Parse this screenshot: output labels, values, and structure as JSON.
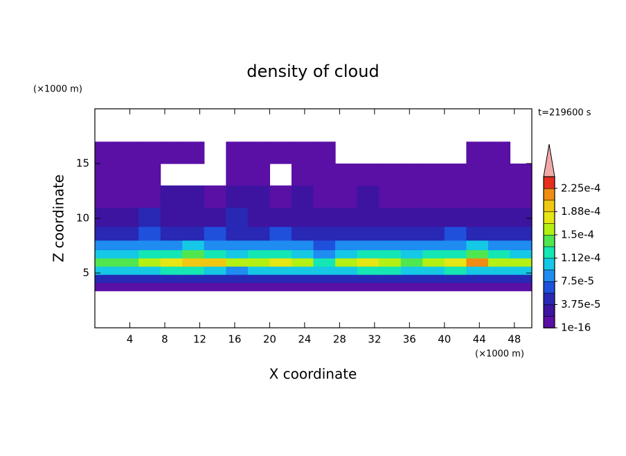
{
  "chart_data": {
    "type": "contour",
    "title": "density of cloud",
    "time_label": "t=219600 s",
    "x_label": "X coordinate",
    "y_label": "Z coordinate",
    "x_unit": "(×1000 m)",
    "y_unit": "(×1000 m)",
    "xlim": [
      0,
      50
    ],
    "ylim": [
      0,
      20
    ],
    "xticks": [
      4,
      8,
      12,
      16,
      20,
      24,
      28,
      32,
      36,
      40,
      44,
      48
    ],
    "yticks": [
      5,
      10,
      15
    ],
    "levels": [
      1e-16,
      1.875e-05,
      3.75e-05,
      5.625e-05,
      7.5e-05,
      9.375e-05,
      0.0001125,
      0.00013125,
      0.00015,
      0.00016875,
      0.0001875,
      0.00020625,
      0.000225,
      0.00024375
    ],
    "colors": [
      "#5a0fa5",
      "#3c14a0",
      "#2828b4",
      "#1e50dc",
      "#1e8cf0",
      "#14c8e6",
      "#14e6b4",
      "#50e650",
      "#b4f014",
      "#e6e614",
      "#f0c814",
      "#f08c14",
      "#e62d1e"
    ],
    "extend_color": "#f0a8a8",
    "colorbar_ticks": [
      1e-16,
      {
        "value": 3.75e-05,
        "label": "3.75e-5"
      },
      {
        "value": 7.5e-05,
        "label": "7.5e-5"
      },
      {
        "value": 0.0001125,
        "label": "1.12e-4"
      },
      {
        "value": 0.00015,
        "label": "1.5e-4"
      },
      {
        "value": 0.0001875,
        "label": "1.88e-4"
      },
      {
        "value": 0.000225,
        "label": "2.25e-4"
      }
    ],
    "x": [
      1.25,
      3.75,
      6.25,
      8.75,
      11.25,
      13.75,
      16.25,
      18.75,
      21.25,
      23.75,
      26.25,
      28.75,
      31.25,
      33.75,
      36.25,
      38.75,
      41.25,
      43.75,
      46.25,
      48.75
    ],
    "z": [
      3.75,
      4.5,
      5.25,
      6,
      6.75,
      7.5,
      8.5,
      10,
      12,
      14,
      16
    ],
    "values": [
      [
        1.5e-05,
        1.2e-05,
        1.5e-05,
        1.6e-05,
        1.4e-05,
        1.5e-05,
        1.3e-05,
        1.5e-05,
        1.6e-05,
        1.4e-05,
        1.5e-05,
        1.2e-05,
        1.5e-05,
        1.6e-05,
        1.4e-05,
        1.5e-05,
        1.3e-05,
        1.5e-05,
        1.6e-05,
        1.4e-05
      ],
      [
        4.5e-05,
        4e-05,
        5e-05,
        4.5e-05,
        3.8e-05,
        4.2e-05,
        5e-05,
        4.6e-05,
        4e-05,
        4.8e-05,
        5e-05,
        4.4e-05,
        4e-05,
        4.6e-05,
        5e-05,
        4.5e-05,
        4.2e-05,
        4.8e-05,
        4.4e-05,
        4.6e-05
      ],
      [
        0.0001,
        9.5e-05,
        0.00011,
        0.00012,
        0.000115,
        0.0001,
        9e-05,
        0.000105,
        0.00011,
        0.0001,
        9.5e-05,
        0.00011,
        0.00012,
        0.000115,
        0.0001,
        0.00011,
        0.00012,
        0.00011,
        0.0001,
        0.000105
      ],
      [
        0.00014,
        0.000135,
        0.00015,
        0.00017,
        0.00019,
        0.0002,
        0.00015,
        0.00016,
        0.00017,
        0.00015,
        0.00012,
        0.00015,
        0.00017,
        0.00016,
        0.00014,
        0.00016,
        0.00018,
        0.00021,
        0.00016,
        0.00015
      ],
      [
        0.00011,
        0.000105,
        0.00012,
        0.00013,
        0.00014,
        0.00012,
        0.00011,
        0.00012,
        0.00013,
        0.00011,
        9e-05,
        0.00011,
        0.00012,
        0.00012,
        0.0001,
        0.00012,
        0.00013,
        0.00014,
        0.00012,
        0.00011
      ],
      [
        8e-05,
        7.5e-05,
        8.5e-05,
        9e-05,
        9.5e-05,
        8.5e-05,
        8e-05,
        8.5e-05,
        9e-05,
        8e-05,
        7e-05,
        8e-05,
        9e-05,
        8.5e-05,
        8e-05,
        8.5e-05,
        9e-05,
        9.5e-05,
        8.5e-05,
        8e-05
      ],
      [
        5e-05,
        5.5e-05,
        6e-05,
        5e-05,
        5.5e-05,
        6e-05,
        5e-05,
        5e-05,
        6e-05,
        5.5e-05,
        5e-05,
        5e-05,
        5.5e-05,
        5e-05,
        5e-05,
        5.5e-05,
        6e-05,
        5e-05,
        5.5e-05,
        5e-05
      ],
      [
        3.5e-05,
        3e-05,
        3.8e-05,
        3.2e-05,
        3e-05,
        3.5e-05,
        3.8e-05,
        3e-05,
        3.2e-05,
        3.6e-05,
        3e-05,
        3.4e-05,
        3e-05,
        2.8e-05,
        3.2e-05,
        3e-05,
        3.5e-05,
        3.3e-05,
        3e-05,
        3.2e-05
      ],
      [
        1e-05,
        1.5e-05,
        1.2e-05,
        2e-05,
        2.2e-05,
        1.8e-05,
        2.5e-05,
        2e-05,
        1.5e-05,
        2e-05,
        1.8e-05,
        1.5e-05,
        2e-05,
        1.2e-05,
        1e-05,
        1.5e-05,
        1e-05,
        1e-05,
        1.2e-05,
        1.5e-05
      ],
      [
        8e-06,
        8e-06,
        8e-06,
        null,
        null,
        null,
        8e-06,
        8e-06,
        null,
        1e-05,
        8e-06,
        8e-06,
        1e-05,
        8e-06,
        8e-06,
        8e-06,
        8e-06,
        8e-06,
        8e-06,
        8e-06
      ],
      [
        8e-06,
        8e-06,
        8e-06,
        8e-06,
        8e-06,
        null,
        8e-06,
        8e-06,
        8e-06,
        8e-06,
        8e-06,
        null,
        null,
        null,
        null,
        null,
        null,
        8e-06,
        8e-06,
        null
      ]
    ]
  }
}
